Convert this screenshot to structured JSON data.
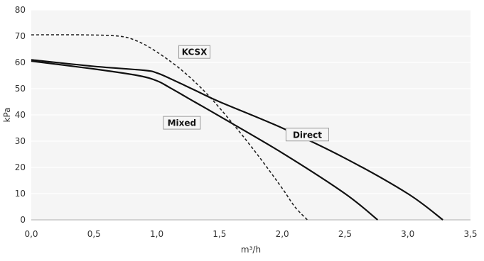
{
  "chart_data": {
    "type": "line",
    "title": "",
    "xlabel": "m³/h",
    "ylabel": "kPa",
    "xlim": [
      0,
      3.5
    ],
    "ylim": [
      0,
      80
    ],
    "x_ticks": [
      "0,0",
      "0,5",
      "1,0",
      "1,5",
      "2,0",
      "2,5",
      "3,0",
      "3,5"
    ],
    "y_ticks": [
      "0",
      "10",
      "20",
      "30",
      "40",
      "50",
      "60",
      "70",
      "80"
    ],
    "grid": "horizontal",
    "plot_background": "#f5f5f5",
    "series": [
      {
        "name": "KCSX",
        "style": "dashed",
        "color": "#222222",
        "x": [
          0,
          0.4,
          0.7,
          0.85,
          1.0,
          1.2,
          1.4,
          1.6,
          1.8,
          2.0,
          2.1,
          2.2
        ],
        "y": [
          70.5,
          70.5,
          70,
          68,
          64,
          57,
          48,
          37,
          25,
          12,
          5,
          0
        ]
      },
      {
        "name": "Direct",
        "style": "solid",
        "color": "#111111",
        "x": [
          0,
          0.5,
          0.9,
          1.0,
          1.1,
          1.3,
          1.5,
          2.0,
          2.5,
          3.0,
          3.28
        ],
        "y": [
          61,
          58.5,
          57,
          56,
          54,
          49.5,
          45,
          35,
          23.5,
          10,
          0
        ]
      },
      {
        "name": "Mixed",
        "style": "solid",
        "color": "#111111",
        "x": [
          0,
          0.5,
          0.85,
          1.0,
          1.1,
          1.3,
          1.5,
          2.0,
          2.5,
          2.76
        ],
        "y": [
          60.5,
          57.5,
          55,
          53,
          50.5,
          45,
          39.5,
          25.5,
          10,
          0
        ]
      }
    ],
    "annotations": [
      {
        "text": "KCSX",
        "x": 1.3,
        "y": 64
      },
      {
        "text": "Mixed",
        "x": 1.2,
        "y": 37
      },
      {
        "text": "Direct",
        "x": 2.2,
        "y": 32.5
      }
    ]
  }
}
